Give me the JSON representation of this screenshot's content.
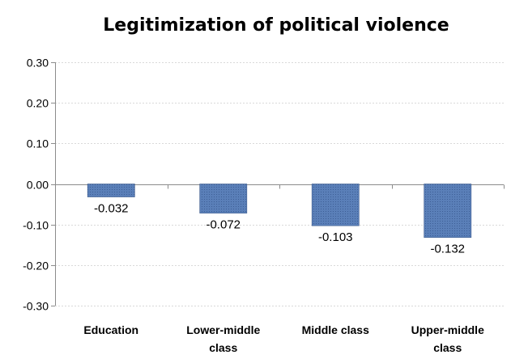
{
  "chart_data": {
    "type": "bar",
    "title": "Legitimization of political violence",
    "categories": [
      "Education",
      "Lower-middle class",
      "Middle class",
      "Upper-middle class"
    ],
    "category_lines": [
      [
        "Education"
      ],
      [
        "Lower-middle",
        "class"
      ],
      [
        "Middle class"
      ],
      [
        "Upper-middle",
        "class"
      ]
    ],
    "values": [
      -0.032,
      -0.072,
      -0.103,
      -0.132
    ],
    "data_labels": [
      "-0.032",
      "-0.072",
      "-0.103",
      "-0.132"
    ],
    "ylim": [
      -0.3,
      0.3
    ],
    "yticks": [
      0.3,
      0.2,
      0.1,
      0.0,
      -0.1,
      -0.2,
      -0.3
    ],
    "ytick_labels": [
      "0.30",
      "0.20",
      "0.10",
      "0.00",
      "-0.10",
      "-0.20",
      "-0.30"
    ],
    "grid": true,
    "bar_color": "#4f74ad",
    "bar_border_color": "#3b5a8c"
  }
}
